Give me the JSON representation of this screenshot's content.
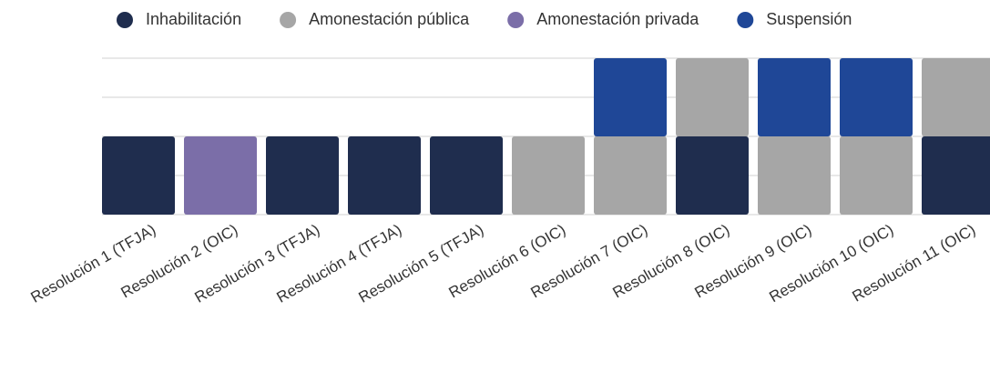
{
  "chart_data": {
    "type": "stacked_bar",
    "categories": [
      "Resolución 1 (TFJA)",
      "Resolución 2 (OIC)",
      "Resolución 3 (TFJA)",
      "Resolución 4 (TFJA)",
      "Resolución 5 (TFJA)",
      "Resolución 6 (OIC)",
      "Resolución 7 (OIC)",
      "Resolución 8 (OIC)",
      "Resolución 9 (OIC)",
      "Resolución 10 (OIC)",
      "Resolución 11 (OIC)"
    ],
    "series": [
      {
        "name": "Inhabilitación",
        "color": "#1f2d4e",
        "values": [
          1,
          0,
          1,
          1,
          1,
          0,
          0,
          1,
          0,
          0,
          1
        ]
      },
      {
        "name": "Amonestación pública",
        "color": "#a6a6a6",
        "values": [
          0,
          0,
          0,
          0,
          0,
          1,
          1,
          1,
          1,
          1,
          1
        ]
      },
      {
        "name": "Amonestación privada",
        "color": "#7b6ea8",
        "values": [
          0,
          1,
          0,
          0,
          0,
          0,
          0,
          0,
          0,
          0,
          0
        ]
      },
      {
        "name": "Suspensión",
        "color": "#1f4797",
        "values": [
          0,
          0,
          0,
          0,
          0,
          0,
          1,
          0,
          1,
          1,
          0
        ]
      }
    ],
    "ylim": [
      0,
      2
    ],
    "yticks": [
      0,
      0.5,
      1,
      1.5,
      2
    ],
    "grid": true,
    "legend": "top"
  }
}
